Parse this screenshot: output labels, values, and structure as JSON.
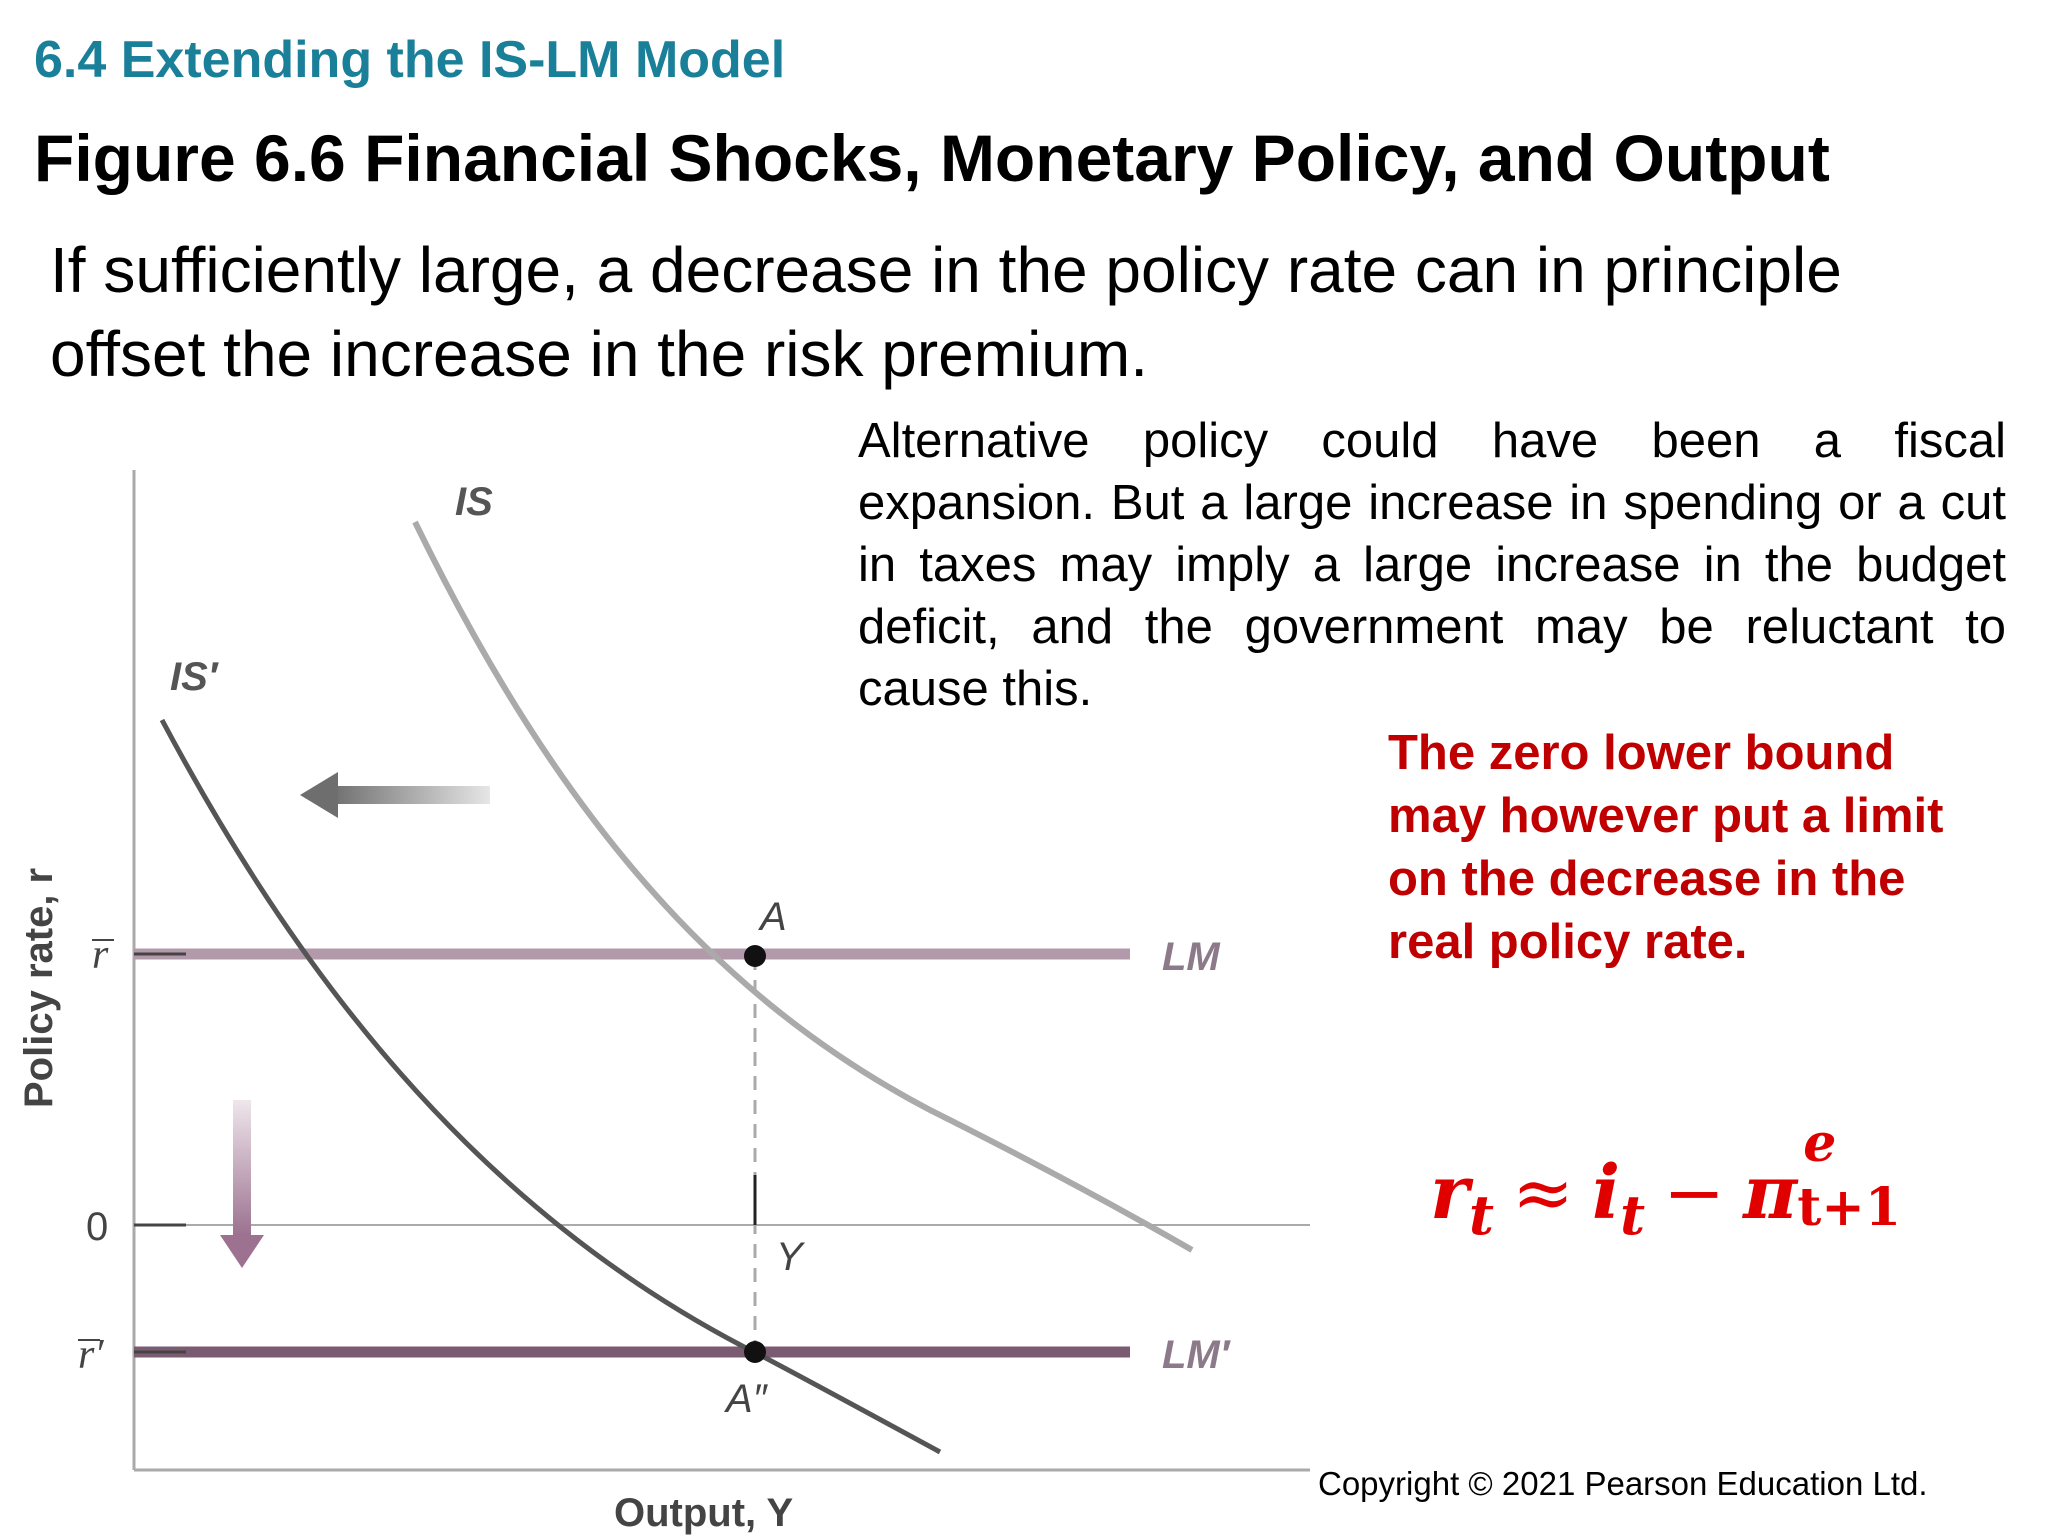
{
  "header": {
    "section_title": "6.4 Extending the IS-LM Model",
    "figure_title": "Figure 6.6 Financial Shocks, Monetary Policy, and Output"
  },
  "lead_text": "If sufficiently large, a decrease in the policy rate can in principle offset the increase in the risk premium.",
  "side_note": "Alternative policy could have been a fiscal expansion. But a large increase in spending or a cut in taxes may imply a large increase in the budget deficit, and the government may be reluctant to cause this.",
  "red_note": "The zero lower bound may however put a limit on the decrease in the real policy rate.",
  "equation": {
    "lhs": "r",
    "lhs_sub": "t",
    "approx": "≈",
    "i": "i",
    "i_sub": "t",
    "minus": "−",
    "pi": "π",
    "pi_sup": "e",
    "pi_sub": "t+1"
  },
  "diagram": {
    "y_axis_label": "Policy rate, r",
    "x_axis_label": "Output, Y",
    "ticks": {
      "r_bar": "r",
      "zero": "0",
      "r_bar_prime": "r′"
    },
    "curves": {
      "is": "IS",
      "is_prime": "IS′",
      "lm": "LM",
      "lm_prime": "LM′"
    },
    "points": {
      "a": "A",
      "a_double_prime": "A″",
      "y": "Y"
    },
    "colors": {
      "is_curve": "#aaaaaa",
      "is_prime_curve": "#555555",
      "lm_line": "#b39aab",
      "lm_prime_line": "#7a5b72",
      "down_arrow": "#9c7290",
      "left_arrow": "#777777"
    }
  },
  "copyright": "Copyright © 2021 Pearson Education Ltd."
}
